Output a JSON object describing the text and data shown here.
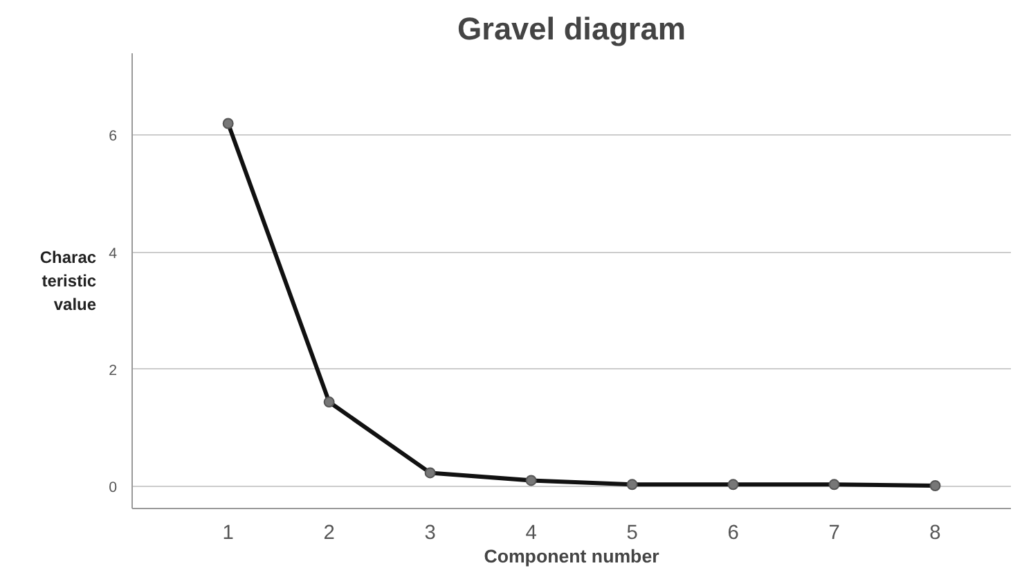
{
  "chart_data": {
    "type": "line",
    "title": "Gravel diagram",
    "xlabel": "Component number",
    "ylabel": "Charac\nteristic\nvalue",
    "x": [
      1,
      2,
      3,
      4,
      5,
      6,
      7,
      8
    ],
    "series": [
      {
        "color": "#111111",
        "values": [
          6.2,
          1.44,
          0.23,
          0.1,
          0.03,
          0.03,
          0.03,
          0.01
        ]
      }
    ],
    "xlim": [
      0.05,
      8.75
    ],
    "ylim": [
      -0.38,
      7.4
    ],
    "xticks": [
      1,
      2,
      3,
      4,
      5,
      6,
      7,
      8
    ],
    "yticks": [
      0,
      2,
      4,
      6
    ],
    "grid": "y",
    "marker": "circle",
    "line_style": "solid"
  }
}
